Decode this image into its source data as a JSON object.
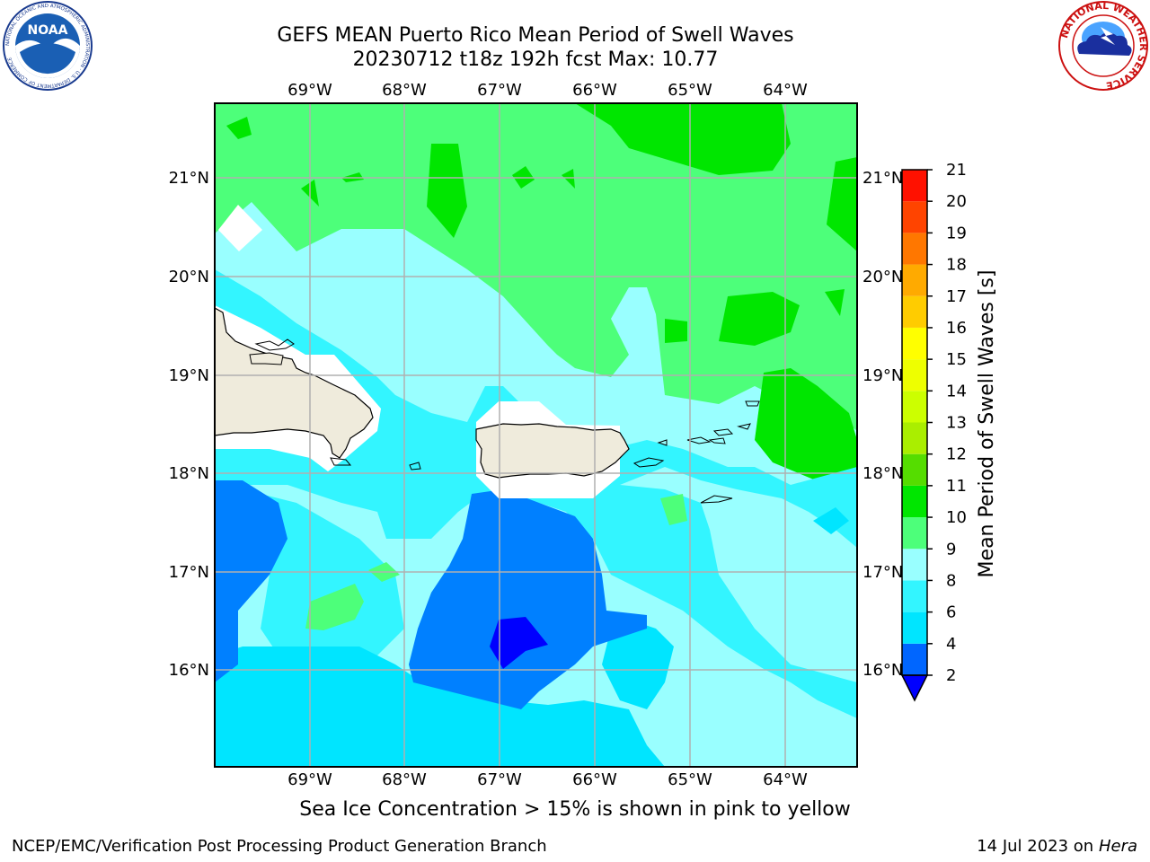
{
  "header": {
    "title_line1": "GEFS MEAN Puerto Rico Mean Period of Swell Waves",
    "title_line2": "20230712 t18z 192h fcst   Max: 10.77"
  },
  "logos": {
    "noaa": {
      "text": "NOAA",
      "ring_text": "NATIONAL OCEANIC AND ATMOSPHERIC ADMINISTRATION · U.S. DEPARTMENT OF COMMERCE"
    },
    "nws": {
      "ring_text": "NATIONAL WEATHER SERVICE"
    }
  },
  "map": {
    "lon_labels": [
      "69°W",
      "68°W",
      "67°W",
      "66°W",
      "65°W",
      "64°W"
    ],
    "lat_labels": [
      "21°N",
      "20°N",
      "19°N",
      "18°N",
      "17°N",
      "16°N"
    ]
  },
  "colorbar": {
    "label": "Mean Period of Swell Waves [s]",
    "ticks": [
      "2",
      "4",
      "6",
      "8",
      "9",
      "10",
      "11",
      "12",
      "13",
      "14",
      "15",
      "16",
      "17",
      "18",
      "19",
      "20",
      "21"
    ],
    "colors": [
      "#0000ff",
      "#0066ff",
      "#00e5ff",
      "#33f5ff",
      "#99ffff",
      "#4dff7a",
      "#00e600",
      "#55dd00",
      "#aaee00",
      "#ccff00",
      "#eeff00",
      "#ffff00",
      "#ffcc00",
      "#ffaa00",
      "#ff7700",
      "#ff4400",
      "#ff1100",
      "#ff0000"
    ]
  },
  "caption": "Sea Ice Concentration > 15% is shown in pink to yellow",
  "footer": {
    "left": "NCEP/EMC/Verification Post Processing Product Generation Branch",
    "date": "14 Jul 2023 on ",
    "host": "Hera"
  }
}
